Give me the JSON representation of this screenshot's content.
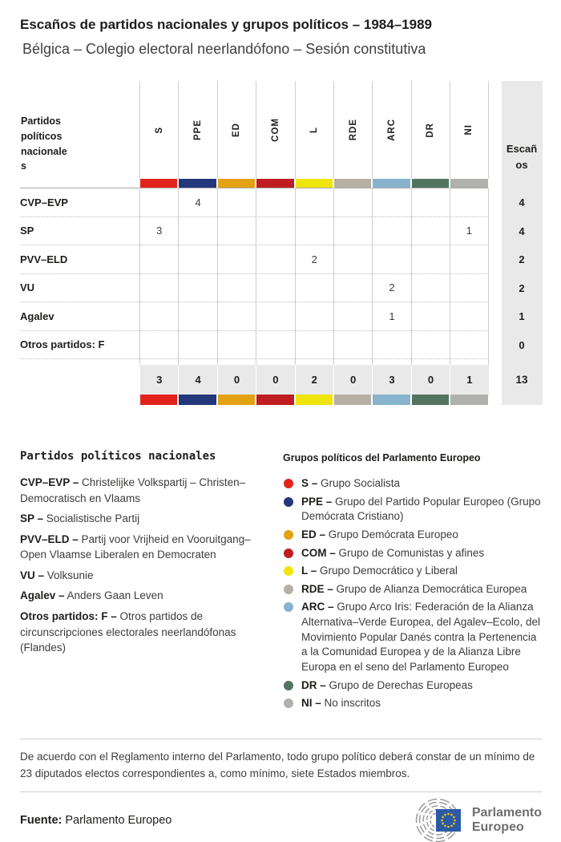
{
  "title": "Escaños de partidos nacionales y grupos políticos – 1984–1989",
  "subtitle": "Bélgica – Colegio electoral neerlandófono – Sesión constitutiva",
  "table": {
    "row_header_label": "Partidos políticos nacionales",
    "seats_label": "Escaños",
    "groups": [
      {
        "code": "S",
        "color": "#e2231b"
      },
      {
        "code": "PPE",
        "color": "#24377b"
      },
      {
        "code": "ED",
        "color": "#e3a114"
      },
      {
        "code": "COM",
        "color": "#bf1d21"
      },
      {
        "code": "L",
        "color": "#f0e40e"
      },
      {
        "code": "RDE",
        "color": "#b6b0a4"
      },
      {
        "code": "ARC",
        "color": "#87b4cc"
      },
      {
        "code": "DR",
        "color": "#53745f"
      },
      {
        "code": "NI",
        "color": "#b1b1ac"
      }
    ],
    "rows": [
      {
        "party": "CVP–EVP",
        "values": [
          "",
          "4",
          "",
          "",
          "",
          "",
          "",
          "",
          ""
        ],
        "total": "4"
      },
      {
        "party": "SP",
        "values": [
          "3",
          "",
          "",
          "",
          "",
          "",
          "",
          "",
          "1"
        ],
        "total": "4"
      },
      {
        "party": "PVV–ELD",
        "values": [
          "",
          "",
          "",
          "",
          "2",
          "",
          "",
          "",
          ""
        ],
        "total": "2"
      },
      {
        "party": "VU",
        "values": [
          "",
          "",
          "",
          "",
          "",
          "",
          "2",
          "",
          ""
        ],
        "total": "2"
      },
      {
        "party": "Agalev",
        "values": [
          "",
          "",
          "",
          "",
          "",
          "",
          "1",
          "",
          ""
        ],
        "total": "1"
      },
      {
        "party": "Otros partidos: F",
        "values": [
          "",
          "",
          "",
          "",
          "",
          "",
          "",
          "",
          ""
        ],
        "total": "0"
      }
    ],
    "totals": {
      "values": [
        "3",
        "4",
        "0",
        "0",
        "2",
        "0",
        "3",
        "0",
        "1"
      ],
      "total": "13"
    }
  },
  "legend_parties": {
    "title": "Partidos políticos nacionales",
    "items": [
      {
        "code": "CVP–EVP –",
        "text": "Christelijke Volkspartij – Christen–Democratisch en Vlaams"
      },
      {
        "code": "SP –",
        "text": "Socialistische Partij"
      },
      {
        "code": "PVV–ELD –",
        "text": "Partij voor Vrijheid en Vooruitgang–Open Vlaamse Liberalen en Democraten"
      },
      {
        "code": "VU –",
        "text": "Volksunie"
      },
      {
        "code": "Agalev –",
        "text": "Anders Gaan Leven"
      },
      {
        "code": "Otros partidos: F –",
        "text": "Otros partidos de circunscripciones electorales neerlandófonas (Flandes)"
      }
    ]
  },
  "legend_groups": {
    "title": "Grupos políticos del Parlamento Europeo",
    "items": [
      {
        "code": "S –",
        "color": "#e2231b",
        "text": "Grupo Socialista"
      },
      {
        "code": "PPE –",
        "color": "#24377b",
        "text": "Grupo del Partido Popular Europeo (Grupo Demócrata Cristiano)"
      },
      {
        "code": "ED –",
        "color": "#e3a114",
        "text": "Grupo Demócrata Europeo"
      },
      {
        "code": "COM –",
        "color": "#bf1d21",
        "text": "Grupo de Comunistas y afines"
      },
      {
        "code": "L –",
        "color": "#f0e40e",
        "text": "Grupo Democrático y Liberal"
      },
      {
        "code": "RDE –",
        "color": "#b6b0a4",
        "text": "Grupo de Alianza Democrática Europea"
      },
      {
        "code": "ARC –",
        "color": "#87b4cc",
        "text": "Grupo Arco Iris: Federación de la Alianza Alternativa–Verde Europea, del Agalev–Ecolo, del Movimiento Popular Danés contra la Pertenencia a la Comunidad Europea y de la Alianza Libre Europa en el seno del Parlamento Europeo"
      },
      {
        "code": "DR –",
        "color": "#53745f",
        "text": "Grupo de Derechas Europeas"
      },
      {
        "code": "NI –",
        "color": "#b1b1ac",
        "text": "No inscritos"
      }
    ]
  },
  "note": "De acuerdo con el Reglamento interno del Parlamento, todo grupo político deberá constar de un mínimo de 23 diputados electos correspondientes a, como mínimo, siete Estados miembros.",
  "source": {
    "label": "Fuente:",
    "text": "Parlamento Europeo"
  },
  "logo": {
    "line1": "Parlamento",
    "line2": "Europeo"
  },
  "chart_data": {
    "type": "table",
    "title": "Escaños de partidos nacionales y grupos políticos – 1984–1989",
    "subtitle": "Bélgica – Colegio electoral neerlandófono – Sesión constitutiva",
    "columns": [
      "S",
      "PPE",
      "ED",
      "COM",
      "L",
      "RDE",
      "ARC",
      "DR",
      "NI",
      "Escaños"
    ],
    "rows": [
      {
        "party": "CVP–EVP",
        "S": 0,
        "PPE": 4,
        "ED": 0,
        "COM": 0,
        "L": 0,
        "RDE": 0,
        "ARC": 0,
        "DR": 0,
        "NI": 0,
        "Escaños": 4
      },
      {
        "party": "SP",
        "S": 3,
        "PPE": 0,
        "ED": 0,
        "COM": 0,
        "L": 0,
        "RDE": 0,
        "ARC": 0,
        "DR": 0,
        "NI": 1,
        "Escaños": 4
      },
      {
        "party": "PVV–ELD",
        "S": 0,
        "PPE": 0,
        "ED": 0,
        "COM": 0,
        "L": 2,
        "RDE": 0,
        "ARC": 0,
        "DR": 0,
        "NI": 0,
        "Escaños": 2
      },
      {
        "party": "VU",
        "S": 0,
        "PPE": 0,
        "ED": 0,
        "COM": 0,
        "L": 0,
        "RDE": 0,
        "ARC": 2,
        "DR": 0,
        "NI": 0,
        "Escaños": 2
      },
      {
        "party": "Agalev",
        "S": 0,
        "PPE": 0,
        "ED": 0,
        "COM": 0,
        "L": 0,
        "RDE": 0,
        "ARC": 1,
        "DR": 0,
        "NI": 0,
        "Escaños": 1
      },
      {
        "party": "Otros partidos: F",
        "S": 0,
        "PPE": 0,
        "ED": 0,
        "COM": 0,
        "L": 0,
        "RDE": 0,
        "ARC": 0,
        "DR": 0,
        "NI": 0,
        "Escaños": 0
      }
    ],
    "totals": {
      "S": 3,
      "PPE": 4,
      "ED": 0,
      "COM": 0,
      "L": 2,
      "RDE": 0,
      "ARC": 3,
      "DR": 0,
      "NI": 1,
      "Escaños": 13
    },
    "group_colors": {
      "S": "#e2231b",
      "PPE": "#24377b",
      "ED": "#e3a114",
      "COM": "#bf1d21",
      "L": "#f0e40e",
      "RDE": "#b6b0a4",
      "ARC": "#87b4cc",
      "DR": "#53745f",
      "NI": "#b1b1ac"
    }
  }
}
